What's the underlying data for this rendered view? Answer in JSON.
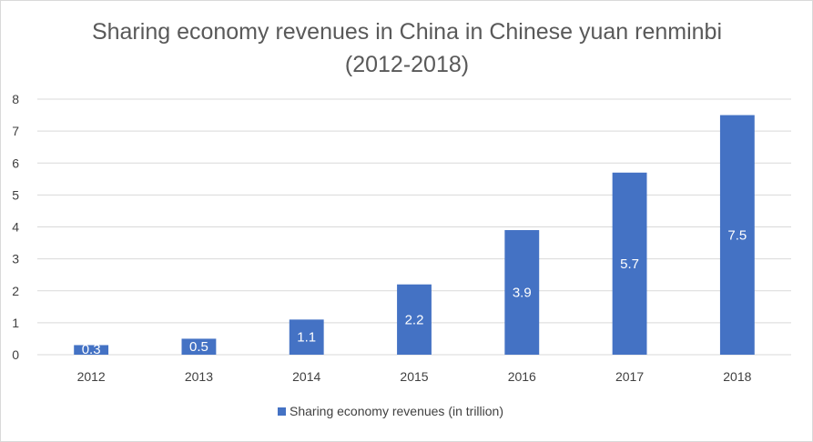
{
  "chart_data": {
    "type": "bar",
    "title_line1": "Sharing economy revenues in China in Chinese yuan renminbi",
    "title_line2": "(2012-2018)",
    "categories": [
      "2012",
      "2013",
      "2014",
      "2015",
      "2016",
      "2017",
      "2018"
    ],
    "series": [
      {
        "name": "Sharing economy revenues (in trillion)",
        "values": [
          0.3,
          0.5,
          1.1,
          2.2,
          3.9,
          5.7,
          7.5
        ],
        "color": "#4472c4"
      }
    ],
    "data_labels": [
      "0.3",
      "0.5",
      "1.1",
      "2.2",
      "3.9",
      "5.7",
      "7.5"
    ],
    "y_ticks": [
      "0",
      "1",
      "2",
      "3",
      "4",
      "5",
      "6",
      "7",
      "8"
    ],
    "ylim": [
      0,
      8
    ],
    "grid": true,
    "legend_position": "bottom",
    "gridline_color": "#d9d9d9"
  }
}
